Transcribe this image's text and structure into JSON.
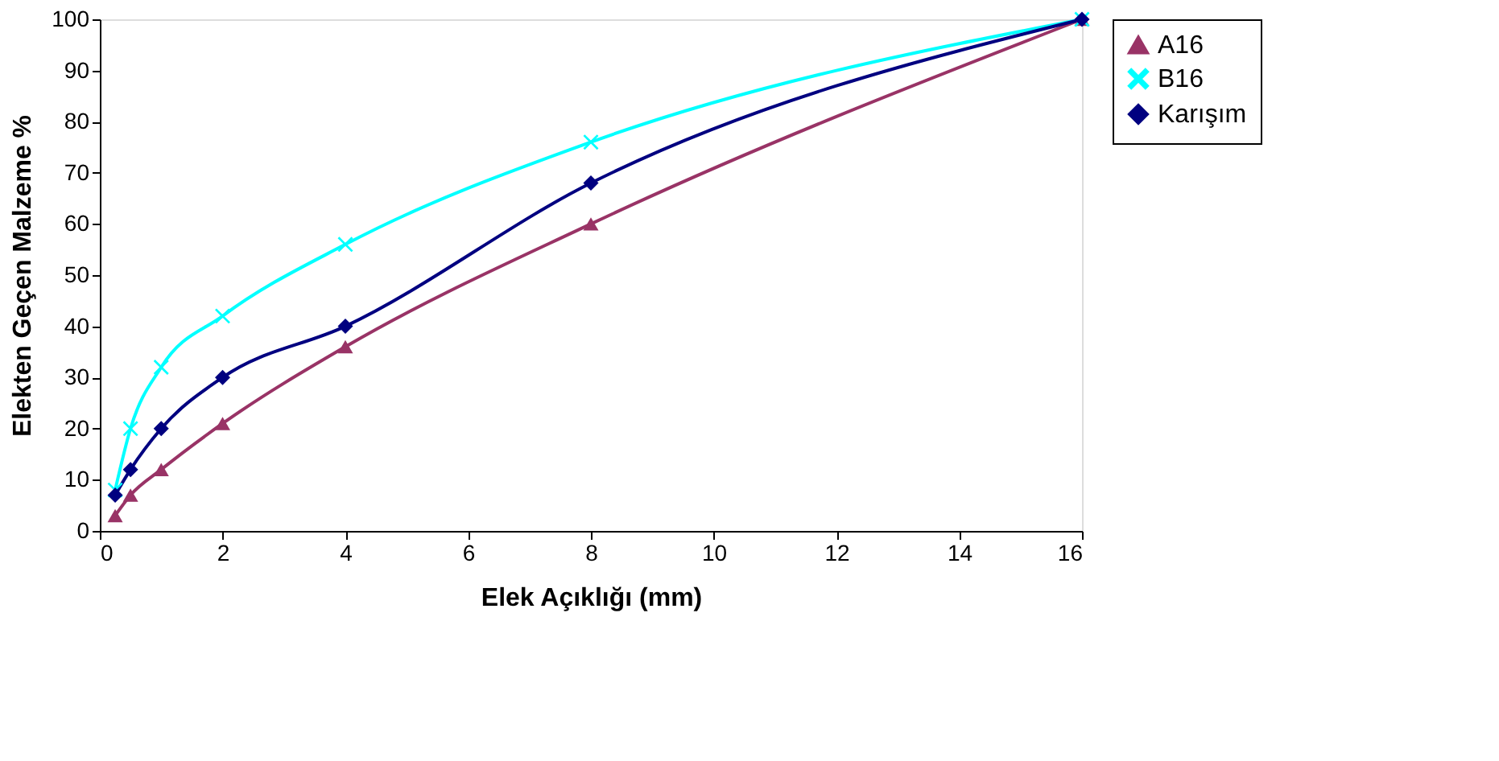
{
  "chart_data": {
    "type": "line",
    "xlabel": "Elek Açıklığı (mm)",
    "ylabel": "Elekten Geçen Malzeme %",
    "x": [
      0.25,
      0.5,
      1,
      2,
      4,
      8,
      16
    ],
    "series": [
      {
        "name": "A16",
        "color": "#993366",
        "marker": "triangle",
        "values": [
          3,
          7,
          12,
          21,
          36,
          60,
          100
        ]
      },
      {
        "name": "B16",
        "color": "#00ffff",
        "marker": "cross",
        "values": [
          8,
          20,
          32,
          42,
          56,
          76,
          100
        ]
      },
      {
        "name": "Karışım",
        "color": "#000080",
        "marker": "diamond",
        "values": [
          7,
          12,
          20,
          30,
          40,
          68,
          100
        ]
      }
    ],
    "xlim": [
      0,
      16
    ],
    "xticks": [
      0,
      2,
      4,
      6,
      8,
      10,
      12,
      14,
      16
    ],
    "ylim": [
      0,
      100
    ],
    "yticks": [
      0,
      10,
      20,
      30,
      40,
      50,
      60,
      70,
      80,
      90,
      100
    ],
    "grid": false,
    "legend": "right",
    "line_style": "solid"
  }
}
